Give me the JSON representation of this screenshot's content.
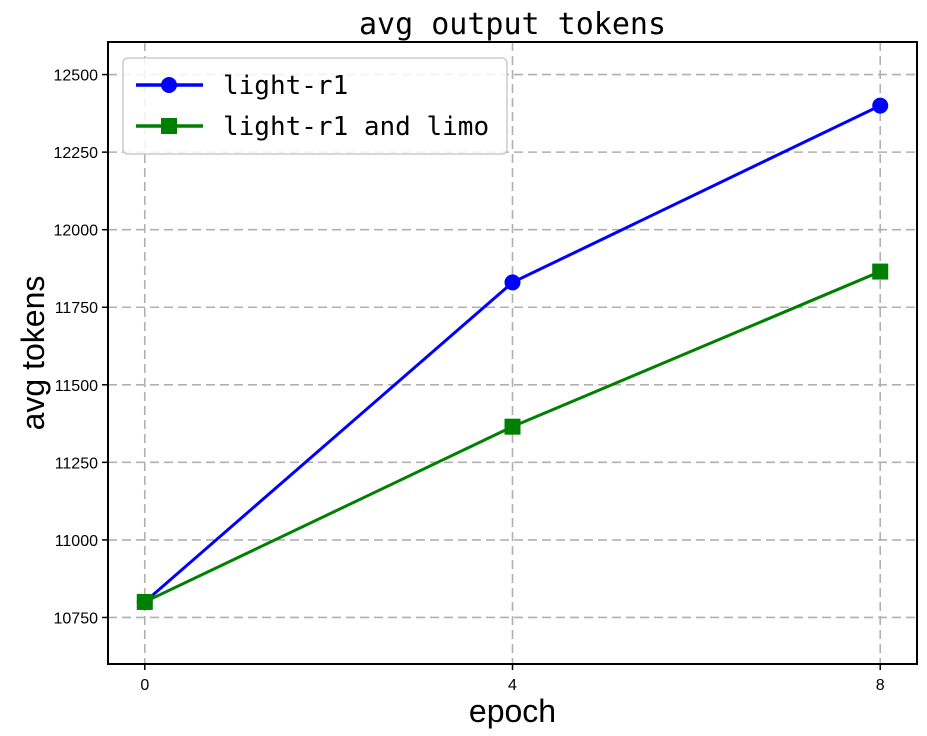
{
  "chart_data": {
    "type": "line",
    "title": "avg output tokens",
    "xlabel": "epoch",
    "ylabel": "avg tokens",
    "x": [
      0,
      4,
      8
    ],
    "x_ticks": [
      0,
      4,
      8
    ],
    "y_ticks": [
      10750,
      11000,
      11250,
      11500,
      11750,
      12000,
      12250,
      12500
    ],
    "xlim": [
      -0.4,
      8.4
    ],
    "ylim": [
      10600,
      12605
    ],
    "grid": true,
    "legend_position": "top-left",
    "series": [
      {
        "name": "light-r1",
        "values": [
          10800,
          11830,
          12400
        ],
        "color": "#0000ff",
        "marker": "circle"
      },
      {
        "name": "light-r1 and limo",
        "values": [
          10800,
          11365,
          11865
        ],
        "color": "#008000",
        "marker": "square"
      }
    ]
  }
}
